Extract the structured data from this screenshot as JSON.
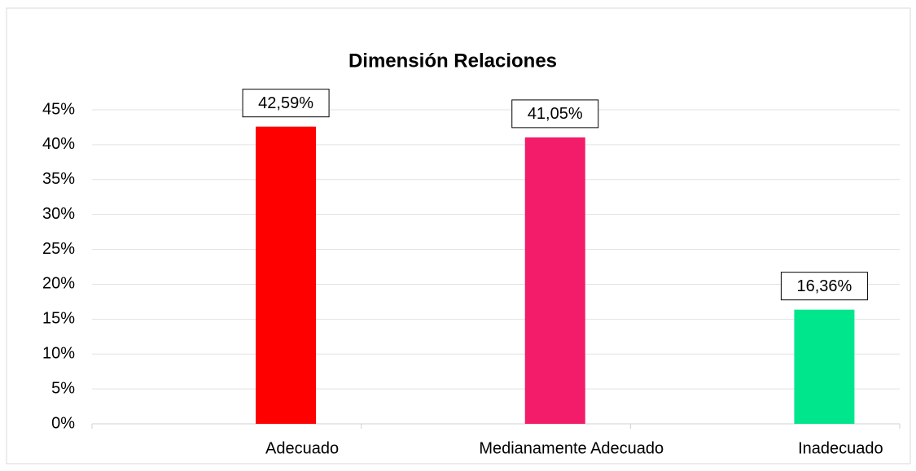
{
  "chart_data": {
    "type": "bar",
    "title": "Dimensión Relaciones",
    "categories": [
      "Adecuado",
      "Medianamente Adecuado",
      "Inadecuado"
    ],
    "values": [
      42.59,
      41.05,
      16.36
    ],
    "value_labels": [
      "42,59%",
      "41,05%",
      "16,36%"
    ],
    "colors": [
      "#ff0000",
      "#f31c6a",
      "#00e68c"
    ],
    "ylim": [
      0,
      45
    ],
    "yticks": [
      {
        "value": 0,
        "label": "0%"
      },
      {
        "value": 5,
        "label": "5%"
      },
      {
        "value": 10,
        "label": "10%"
      },
      {
        "value": 15,
        "label": "15%"
      },
      {
        "value": 20,
        "label": "20%"
      },
      {
        "value": 25,
        "label": "25%"
      },
      {
        "value": 30,
        "label": "30%"
      },
      {
        "value": 35,
        "label": "35%"
      },
      {
        "value": 40,
        "label": "40%"
      },
      {
        "value": 45,
        "label": "45%"
      }
    ],
    "grid": true
  }
}
